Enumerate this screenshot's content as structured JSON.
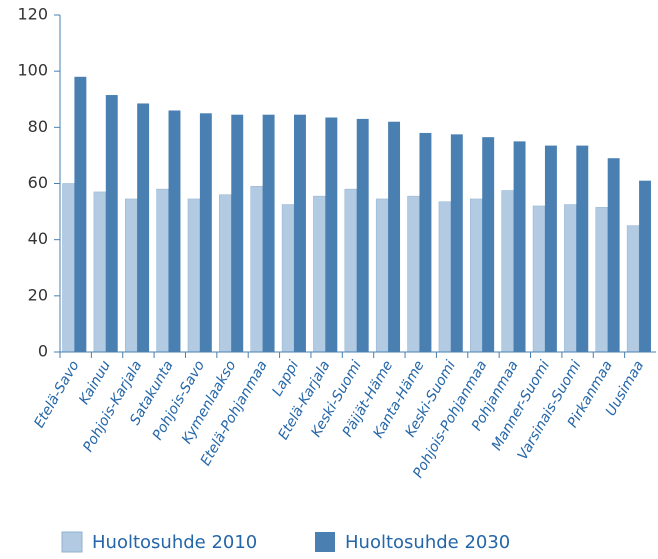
{
  "chart_data": {
    "type": "bar",
    "categories": [
      "Etelä-Savo",
      "Kainuu",
      "Pohjois-Karjala",
      "Satakunta",
      "Pohjois-Savo",
      "Kymenlaakso",
      "Etelä-Pohjanmaa",
      "Lappi",
      "Etelä-Karjala",
      "Keski-Suomi",
      "Päijät-Häme",
      "Kanta-Häme",
      "Keski-Suomi",
      "Pohjois-Pohjanmaa",
      "Pohjanmaa",
      "Manner-Suomi",
      "Varsinais-Suomi",
      "Pirkanmaa",
      "Uusimaa"
    ],
    "series": [
      {
        "name": "Huoltosuhde 2010",
        "color": "#b3cbe2",
        "values": [
          60,
          57,
          54.5,
          58,
          54.5,
          56,
          59,
          52.5,
          55.5,
          58,
          54.5,
          55.5,
          53.5,
          54.5,
          57.5,
          52,
          52.5,
          51.5,
          45
        ]
      },
      {
        "name": "Huoltosuhde 2030",
        "color": "#4a7fb2",
        "values": [
          98,
          91.5,
          88.5,
          86,
          85,
          84.5,
          84.5,
          84.5,
          83.5,
          83,
          82,
          78,
          77.5,
          76.5,
          75,
          73.5,
          73.5,
          69,
          61
        ]
      }
    ],
    "ylim": [
      0,
      120
    ],
    "yticks": [
      0,
      20,
      40,
      60,
      80,
      100,
      120
    ],
    "legend": "bottom"
  }
}
